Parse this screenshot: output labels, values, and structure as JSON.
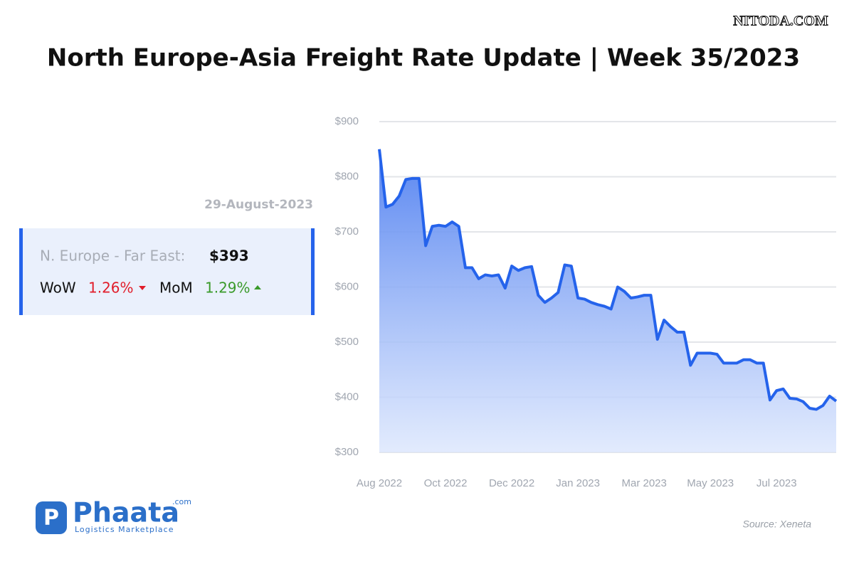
{
  "header": {
    "title": "North Europe-Asia Freight Rate Update | Week 35/2023",
    "watermark": "NITODA.COM"
  },
  "card": {
    "date": "29-August-2023",
    "route": "N. Europe - Far East:",
    "price": "$393",
    "wow_label": "WoW",
    "wow_value": "1.26%",
    "mom_label": "MoM",
    "mom_value": "1.29%"
  },
  "logo": {
    "name": "Phaata",
    "suffix": ".com",
    "tagline": "Logistics Marketplace"
  },
  "source": "Source: Xeneta",
  "chart_data": {
    "type": "area",
    "categories": [
      "Aug 2022",
      null,
      null,
      null,
      null,
      null,
      null,
      null,
      null,
      null,
      "Oct 2022",
      null,
      null,
      null,
      null,
      null,
      null,
      null,
      null,
      null,
      "Dec 2022",
      null,
      null,
      null,
      null,
      null,
      null,
      null,
      null,
      null,
      "Jan 2023",
      null,
      null,
      null,
      null,
      null,
      null,
      null,
      null,
      null,
      "Mar 2023",
      null,
      null,
      null,
      null,
      null,
      null,
      null,
      null,
      null,
      "May 2023",
      null,
      null,
      null,
      null,
      null,
      null,
      null,
      null,
      null,
      "Jul 2023",
      null,
      null,
      null,
      null,
      null,
      null,
      null,
      null,
      null
    ],
    "series": [
      {
        "name": "N. Europe - Far East",
        "color": "#2563eb",
        "values": [
          850,
          745,
          750,
          765,
          795,
          797,
          797,
          675,
          710,
          712,
          710,
          718,
          710,
          635,
          635,
          615,
          622,
          620,
          622,
          598,
          638,
          630,
          635,
          637,
          585,
          572,
          580,
          590,
          640,
          638,
          580,
          578,
          572,
          568,
          565,
          560,
          600,
          592,
          580,
          582,
          585,
          585,
          505,
          540,
          528,
          518,
          518,
          458,
          480,
          480,
          480,
          478,
          462,
          462,
          462,
          468,
          468,
          462,
          462,
          395,
          412,
          415,
          398,
          397,
          392,
          380,
          378,
          385,
          402,
          393
        ]
      }
    ],
    "ylim": [
      300,
      900
    ],
    "yticks": [
      {
        "value": 300,
        "label": "$300"
      },
      {
        "value": 400,
        "label": "$400"
      },
      {
        "value": 500,
        "label": "$500"
      },
      {
        "value": 600,
        "label": "$600"
      },
      {
        "value": 700,
        "label": "$700"
      },
      {
        "value": 800,
        "label": "$800"
      },
      {
        "value": 900,
        "label": "$900"
      }
    ],
    "grid": true
  }
}
